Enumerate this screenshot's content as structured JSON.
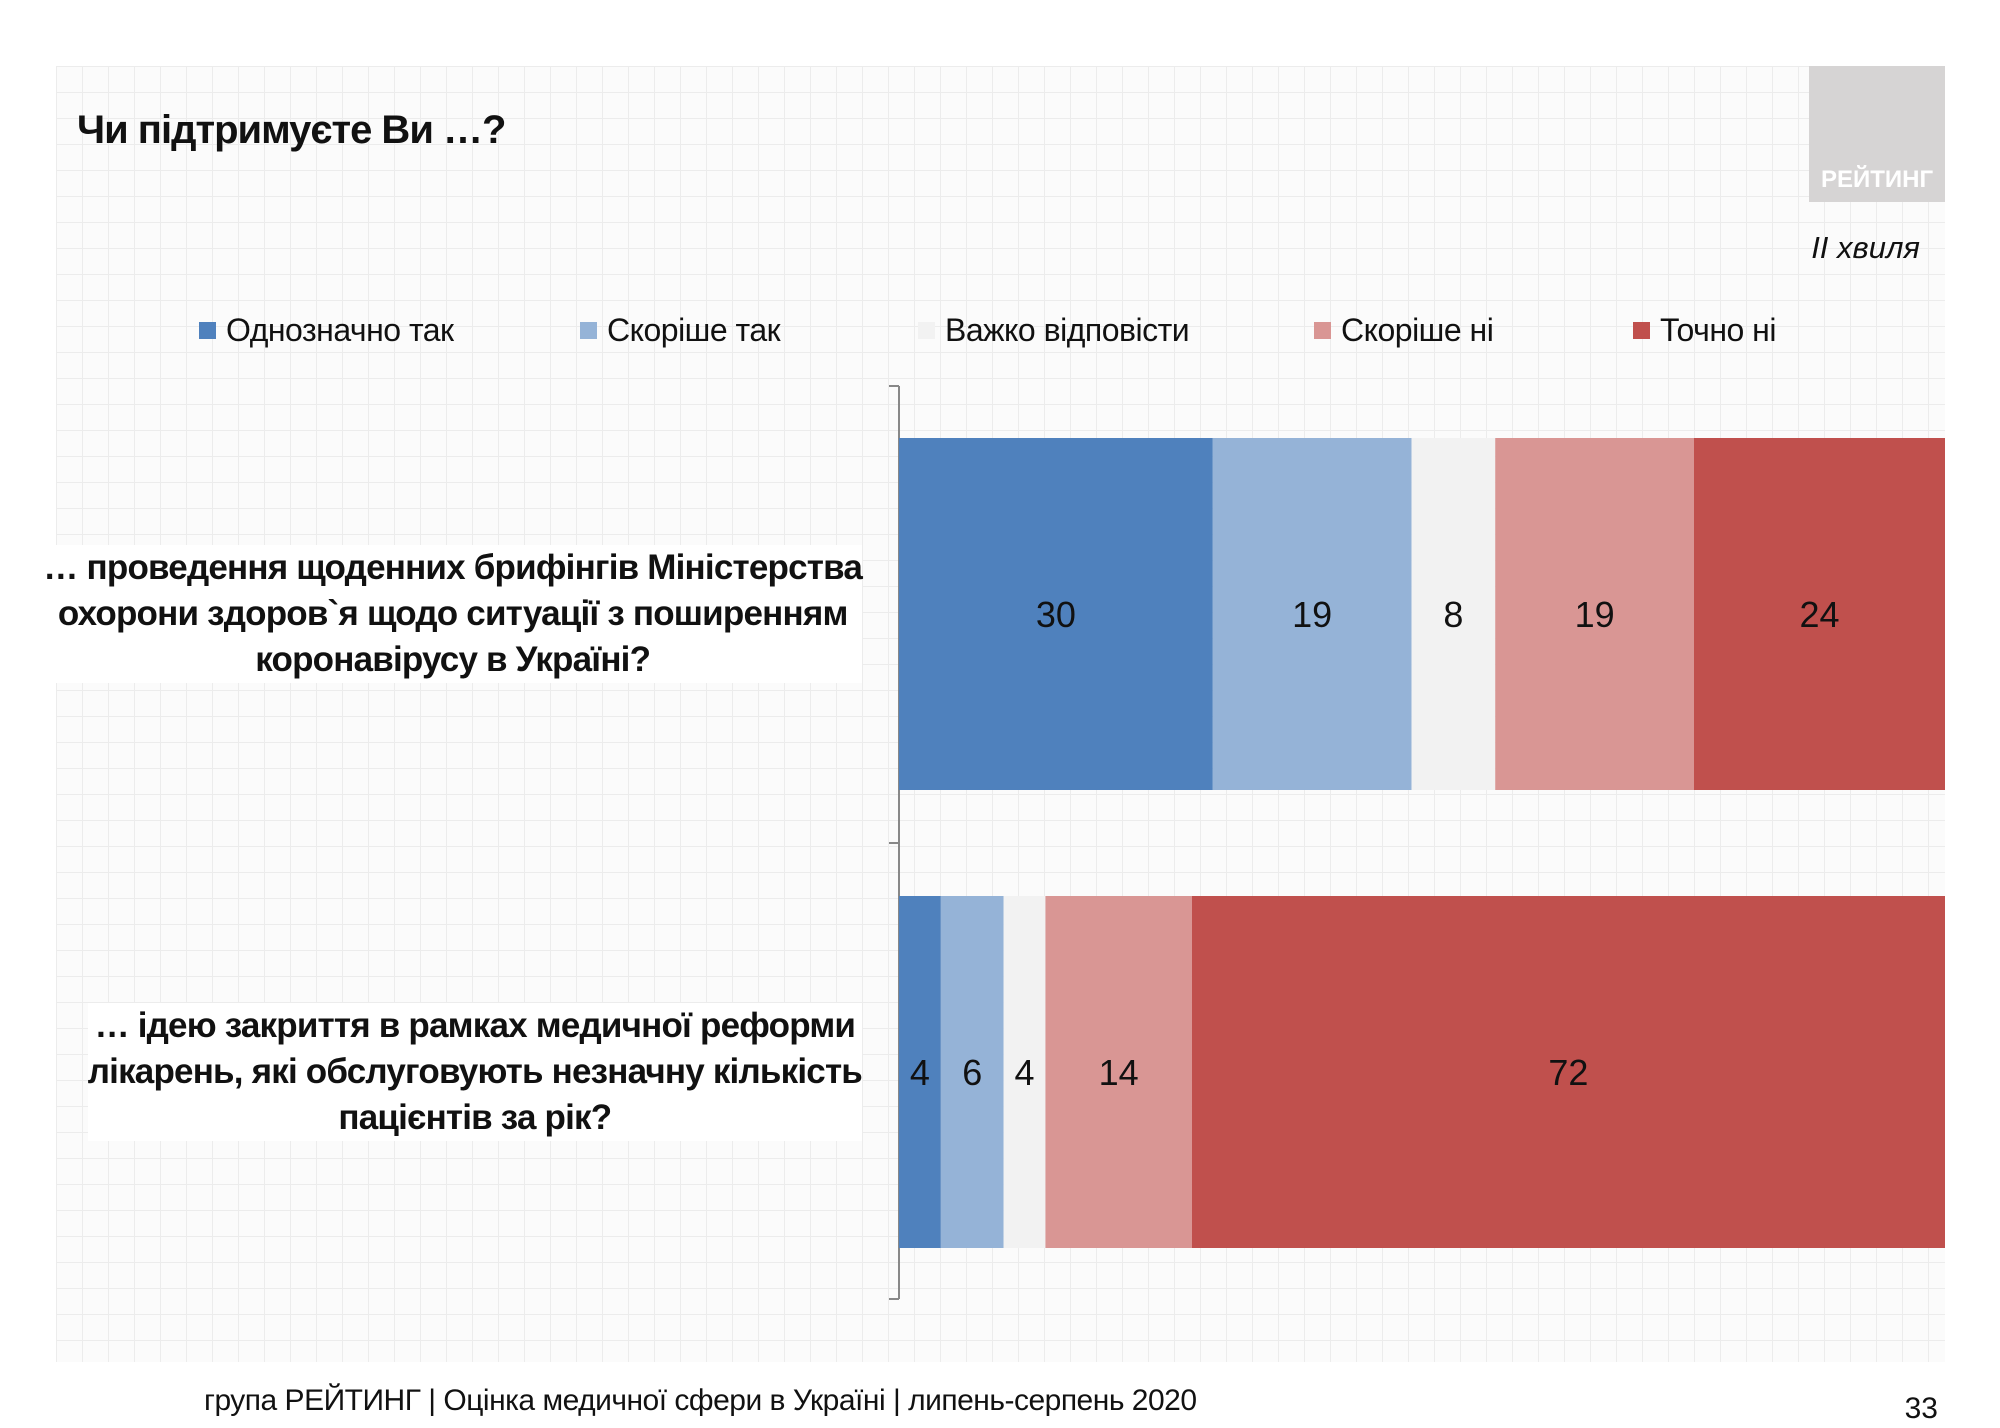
{
  "title": "Чи підтримуєте Ви …?",
  "logo_text": "РЕЙТИНГ",
  "wave": "II хвиля",
  "footer": "група РЕЙТИНГ  |  Оцінка медичної сфери в Україні  | липень-серпень 2020",
  "page_number": "33",
  "chart_data": {
    "type": "bar",
    "orientation": "horizontal",
    "stacked": true,
    "percent_stacked": true,
    "categories": [
      "… проведення щоденних брифінгів Міністерства охорони здоров`я щодо ситуації з поширенням коронавірусу в Україні?",
      "… ідею закриття в рамках медичної реформи лікарень, які обслуговують незначну кількість пацієнтів за рік?"
    ],
    "category_lines": [
      [
        "… проведення щоденних брифінгів Міністерства",
        "охорони здоров`я щодо ситуації з поширенням",
        "коронавірусу в Україні?"
      ],
      [
        "… ідею закриття в рамках медичної реформи",
        "лікарень, які обслуговують незначну кількість",
        "пацієнтів за рік?"
      ]
    ],
    "series": [
      {
        "name": "Однозначно так",
        "color": "#4F81BD",
        "values": [
          30,
          4
        ]
      },
      {
        "name": "Скоріше  так",
        "color": "#95B3D7",
        "values": [
          19,
          6
        ]
      },
      {
        "name": "Важко відповісти",
        "color": "#F2F2F2",
        "values": [
          8,
          4
        ]
      },
      {
        "name": "Скоріше  ні",
        "color": "#D99694",
        "values": [
          19,
          14
        ]
      },
      {
        "name": "Точно ні",
        "color": "#C0504D",
        "values": [
          24,
          72
        ]
      }
    ],
    "data_labels": true,
    "legend_position": "top",
    "grid": false
  }
}
